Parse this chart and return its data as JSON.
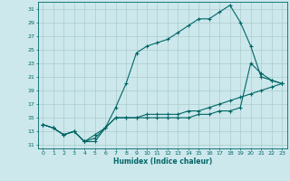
{
  "title": "",
  "xlabel": "Humidex (Indice chaleur)",
  "background_color": "#cce8ec",
  "grid_color": "#aacccc",
  "line_color": "#006666",
  "xlim": [
    -0.5,
    23.5
  ],
  "ylim": [
    10.5,
    32.0
  ],
  "xticks": [
    0,
    1,
    2,
    3,
    4,
    5,
    6,
    7,
    8,
    9,
    10,
    11,
    12,
    13,
    14,
    15,
    16,
    17,
    18,
    19,
    20,
    21,
    22,
    23
  ],
  "yticks": [
    11,
    13,
    15,
    17,
    19,
    21,
    23,
    25,
    27,
    29,
    31
  ],
  "line1_x": [
    0,
    1,
    2,
    3,
    4,
    5,
    6,
    7,
    8,
    9,
    10,
    11,
    12,
    13,
    14,
    15,
    16,
    17,
    18,
    19,
    20,
    21,
    22,
    23
  ],
  "line1_y": [
    14,
    13.5,
    12.5,
    13,
    11.5,
    11.5,
    13.5,
    16.5,
    20,
    24.5,
    25.5,
    26,
    26.5,
    27.5,
    28.5,
    29.5,
    29.5,
    30.5,
    31.5,
    29,
    25.5,
    21,
    20.5,
    20
  ],
  "line2_x": [
    0,
    1,
    2,
    3,
    4,
    5,
    6,
    7,
    8,
    9,
    10,
    11,
    12,
    13,
    14,
    15,
    16,
    17,
    18,
    19,
    20,
    21,
    22,
    23
  ],
  "line2_y": [
    14,
    13.5,
    12.5,
    13,
    11.5,
    12.5,
    13.5,
    15,
    15,
    15,
    15,
    15,
    15,
    15,
    15,
    15.5,
    15.5,
    16,
    16,
    16.5,
    23,
    21.5,
    20.5,
    20
  ],
  "line3_x": [
    0,
    1,
    2,
    3,
    4,
    5,
    6,
    7,
    8,
    9,
    10,
    11,
    12,
    13,
    14,
    15,
    16,
    17,
    18,
    19,
    20,
    21,
    22,
    23
  ],
  "line3_y": [
    14,
    13.5,
    12.5,
    13,
    11.5,
    12,
    13.5,
    15,
    15,
    15,
    15.5,
    15.5,
    15.5,
    15.5,
    16,
    16,
    16.5,
    17,
    17.5,
    18,
    18.5,
    19,
    19.5,
    20
  ]
}
